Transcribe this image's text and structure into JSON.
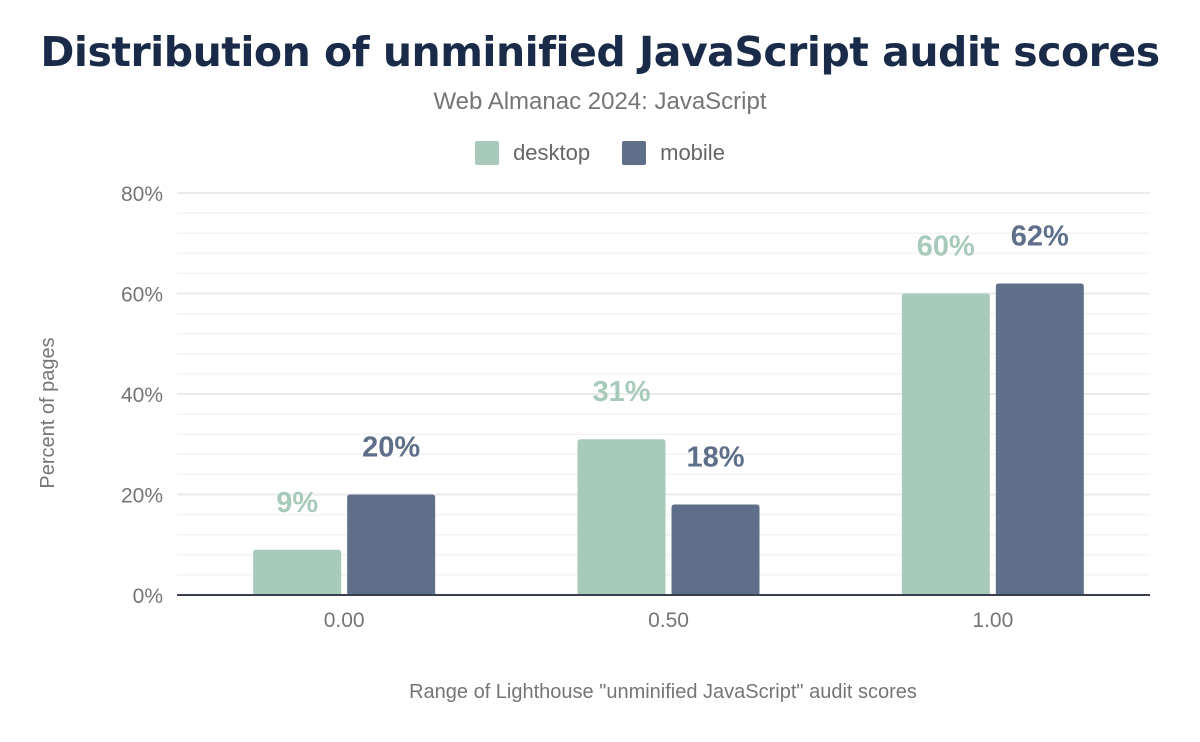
{
  "chart_data": {
    "type": "bar",
    "title": "Distribution of unminified JavaScript audit scores",
    "subtitle": "Web Almanac 2024: JavaScript",
    "xlabel": "Range of Lighthouse \"unminified JavaScript\" audit scores",
    "ylabel": "Percent of pages",
    "categories": [
      "0.00",
      "0.50",
      "1.00"
    ],
    "series": [
      {
        "name": "desktop",
        "color": "#a8cabb",
        "values": [
          9,
          31,
          60
        ],
        "labels": [
          "9%",
          "31%",
          "60%"
        ]
      },
      {
        "name": "mobile",
        "color": "#5f6f8a",
        "values": [
          20,
          18,
          62
        ],
        "labels": [
          "20%",
          "18%",
          "62%"
        ]
      }
    ],
    "ylim": [
      0,
      80
    ],
    "yticks": [
      "0%",
      "20%",
      "40%",
      "60%",
      "80%"
    ],
    "grid": true,
    "legend": "top-center"
  }
}
